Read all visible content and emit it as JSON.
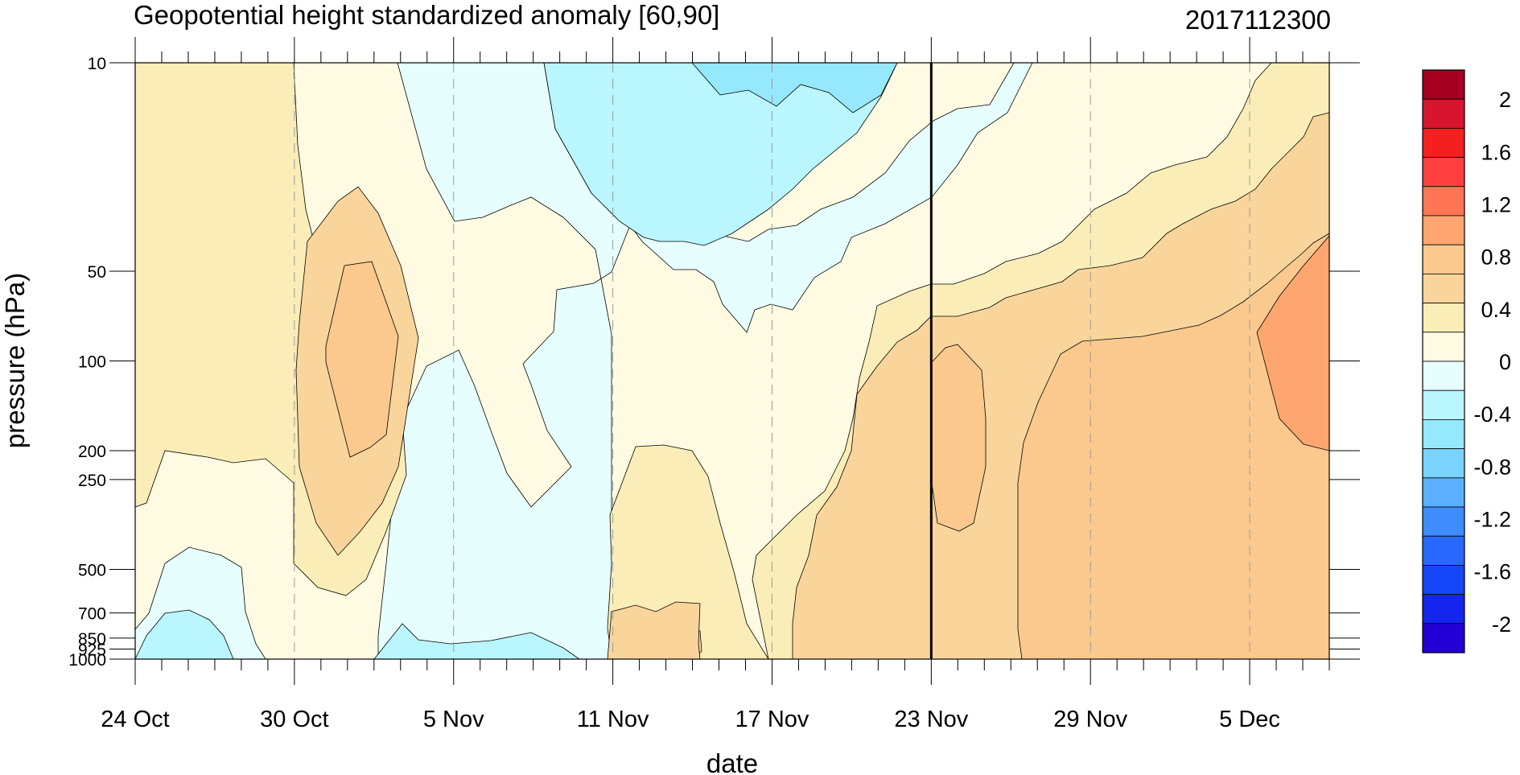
{
  "chart_data": {
    "type": "heatmap",
    "subtype": "filled-contour time-pressure cross-section",
    "title": "Geopotential height standardized anomaly [60,90]",
    "title_right": "2017112300",
    "xlabel": "date",
    "ylabel": "pressure (hPa)",
    "x_ticks": [
      "24 Oct",
      "30 Oct",
      "5 Nov",
      "11 Nov",
      "17 Nov",
      "23 Nov",
      "29 Nov",
      "5 Dec"
    ],
    "x_tick_days": [
      0,
      6,
      12,
      18,
      24,
      30,
      36,
      42
    ],
    "x_range_days": [
      0,
      45
    ],
    "marker_date_day": 30,
    "y_ticks": [
      "10",
      "50",
      "100",
      "200",
      "250",
      "500",
      "700",
      "850",
      "925",
      "1000"
    ],
    "y_tick_values": [
      10,
      50,
      100,
      200,
      250,
      500,
      700,
      850,
      925,
      1000
    ],
    "y_range": [
      10,
      1000
    ],
    "y_scale": "log",
    "vertical_gridlines": "dashed",
    "colorbar": {
      "placement": "right",
      "labels": [
        "2",
        "1.6",
        "1.2",
        "0.8",
        "0.4",
        "0",
        "-0.4",
        "-0.8",
        "-1.2",
        "-1.6",
        "-2"
      ],
      "label_values": [
        2,
        1.6,
        1.2,
        0.8,
        0.4,
        0,
        -0.4,
        -0.8,
        -1.2,
        -1.6,
        -2
      ],
      "colors": [
        "#A50021",
        "#D8152F",
        "#F42020",
        "#FF3F3F",
        "#FF7656",
        "#FFA570",
        "#FBC98E",
        "#FAD59B",
        "#FBEDB7",
        "#FFFBE3",
        "#E6FFFE",
        "#B9F6FE",
        "#96E8FD",
        "#79D3FE",
        "#5CAEFF",
        "#3E8CFE",
        "#2868FE",
        "#1546F8",
        "#1525EF",
        "#2200D6"
      ]
    },
    "levels": {
      "names": [
        "above 0.8",
        "0.6 to 0.8",
        "0.4 to 0.6",
        "0.2 to 0.4",
        "0 to 0.2",
        "-0.2 to 0",
        "-0.4 to -0.2",
        "-0.6 to -0.4"
      ],
      "colors": [
        "#FFA570",
        "#FBC98E",
        "#FAD59B",
        "#FBEDB7",
        "#FFFBE3",
        "#E6FFFE",
        "#B9F6FE",
        "#96E8FD"
      ]
    }
  }
}
